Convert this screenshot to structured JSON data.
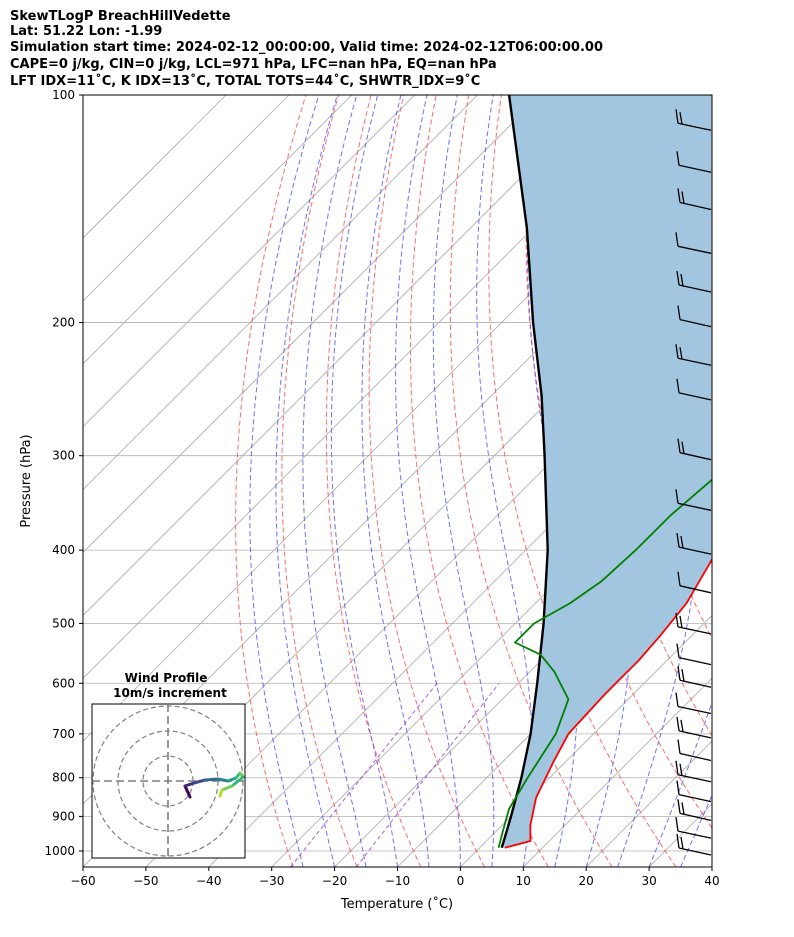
{
  "header": {
    "title_line": "SkewTLogP BreachHillVedette",
    "latlon_line": "Lat: 51.22   Lon: -1.99",
    "time_line": "Simulation start time: 2024-02-12_00:00:00, Valid time: 2024-02-12T06:00:00.00",
    "params_line": "CAPE=0 j/kg, CIN=0 j/kg, LCL=971 hPa, LFC=nan hPa, EQ=nan hPa",
    "indices_line": "LFT IDX=11˚C, K IDX=13˚C, TOTAL TOTS=44˚C, SHWTR_IDX=9˚C"
  },
  "chart_data": {
    "type": "line",
    "title": "SkewTLogP BreachHillVedette",
    "xlabel": "Temperature (˚C)",
    "ylabel": "Pressure (hPa)",
    "xlim": [
      -60,
      40
    ],
    "ylim": [
      1050,
      100
    ],
    "y_scale": "log",
    "x_ticks": [
      "−60",
      "−50",
      "−40",
      "−30",
      "−20",
      "−10",
      "0",
      "10",
      "20",
      "30",
      "40"
    ],
    "y_ticks": [
      100,
      200,
      300,
      400,
      500,
      600,
      700,
      800,
      900,
      1000
    ],
    "grid": true,
    "colors": {
      "temperature": "#ff0000",
      "dewpoint": "#008000",
      "parcel": "#000000",
      "cape_fill": "#a3c6e0",
      "dry_adiabats": "#ff5050",
      "moist_adiabats": "#4b4bff",
      "mixing_ratio": "#9933cc",
      "isotherms": "#a9a9a9"
    },
    "series": [
      {
        "name": "Temperature",
        "points": [
          [
            990,
            4.0
          ],
          [
            970,
            7.0
          ],
          [
            925,
            4.5
          ],
          [
            850,
            1.0
          ],
          [
            760,
            -2.0
          ],
          [
            700,
            -4.0
          ],
          [
            620,
            -4.5
          ],
          [
            590,
            -4.5
          ],
          [
            560,
            -4.5
          ],
          [
            520,
            -5.0
          ],
          [
            470,
            -6.0
          ],
          [
            400,
            -9.5
          ],
          [
            350,
            -12.0
          ],
          [
            310,
            -13.0
          ],
          [
            290,
            -13.0
          ],
          [
            270,
            -12.0
          ],
          [
            250,
            -8.5
          ],
          [
            230,
            -4.5
          ],
          [
            200,
            -0.5
          ],
          [
            170,
            4.5
          ],
          [
            150,
            7.5
          ],
          [
            130,
            9.5
          ],
          [
            115,
            12.0
          ],
          [
            100,
            15.5
          ]
        ]
      },
      {
        "name": "Dewpoint",
        "points": [
          [
            990,
            3.0
          ],
          [
            940,
            1.0
          ],
          [
            880,
            -1.5
          ],
          [
            800,
            -3.5
          ],
          [
            700,
            -6.0
          ],
          [
            630,
            -9.5
          ],
          [
            580,
            -16.0
          ],
          [
            550,
            -21.0
          ],
          [
            530,
            -27.0
          ],
          [
            500,
            -27.0
          ],
          [
            470,
            -24.5
          ],
          [
            440,
            -23.0
          ],
          [
            400,
            -22.5
          ],
          [
            360,
            -22.5
          ],
          [
            320,
            -21.5
          ],
          [
            290,
            -21.0
          ],
          [
            275,
            -21.5
          ],
          [
            260,
            -23.0
          ],
          [
            245,
            -26.0
          ],
          [
            225,
            -31.0
          ],
          [
            210,
            -32.5
          ],
          [
            190,
            -29.0
          ],
          [
            175,
            -28.5
          ],
          [
            160,
            -25.0
          ],
          [
            140,
            -20.5
          ],
          [
            120,
            -16.5
          ],
          [
            100,
            -10.0
          ]
        ]
      },
      {
        "name": "Parcel",
        "points": [
          [
            990,
            3.5
          ],
          [
            971,
            2.8
          ],
          [
            900,
            0.0
          ],
          [
            800,
            -4.5
          ],
          [
            700,
            -10.0
          ],
          [
            600,
            -17.0
          ],
          [
            500,
            -25.5
          ],
          [
            400,
            -36.5
          ],
          [
            300,
            -52.0
          ],
          [
            250,
            -62.0
          ],
          [
            200,
            -75.0
          ],
          [
            150,
            -91.0
          ],
          [
            100,
            -115.0
          ]
        ]
      }
    ],
    "wind_barbs": {
      "pressures": [
        110,
        125,
        140,
        160,
        180,
        200,
        225,
        250,
        300,
        350,
        400,
        450,
        510,
        560,
        600,
        650,
        700,
        750,
        800,
        850,
        900,
        950,
        1000
      ]
    },
    "wind_profile": {
      "title": "Wind Profile",
      "subtitle": "10m/s increment"
    }
  }
}
